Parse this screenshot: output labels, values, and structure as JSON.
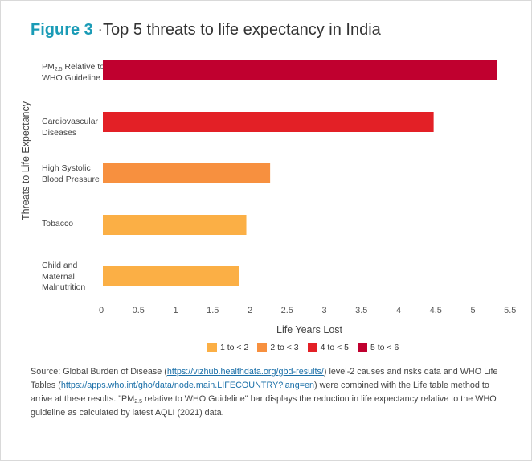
{
  "title": {
    "figure_label": "Figure 3",
    "separator": "·",
    "text": "Top 5 threats to life expectancy in India"
  },
  "chart_data": {
    "type": "bar",
    "orientation": "horizontal",
    "categories": [
      "PM2.5 Relative to WHO Guideline",
      "Cardiovascular Diseases",
      "High Systolic Blood Pressure",
      "Tobacco",
      "Child and Maternal Malnutrition"
    ],
    "values": [
      5.3,
      4.45,
      2.25,
      1.93,
      1.83
    ],
    "bar_colors": [
      "#c0002f",
      "#e32026",
      "#f7903f",
      "#fbaf45",
      "#fbaf45"
    ],
    "xlabel": "Life Years Lost",
    "ylabel": "Threats to Life Expectancy",
    "xlim": [
      0,
      5.5
    ],
    "x_ticks": [
      "0",
      "0.5",
      "1",
      "1.5",
      "2",
      "2.5",
      "3",
      "3.5",
      "4",
      "4.5",
      "5",
      "5.5"
    ],
    "grid": false,
    "legend_placement": "bottom",
    "legend": [
      {
        "label": "1 to < 2",
        "color": "#fbaf45"
      },
      {
        "label": "2 to < 3",
        "color": "#f7903f"
      },
      {
        "label": "4 to < 5",
        "color": "#e32026"
      },
      {
        "label": "5 to < 6",
        "color": "#c0002f"
      }
    ]
  },
  "category_labels": {
    "pm25_prefix": "PM",
    "pm25_sub": "2.5",
    "pm25_suffix": " Relative to WHO Guideline",
    "cardio": "Cardiovascular Diseases",
    "bp": "High Systolic Blood Pressure",
    "tobacco": "Tobacco",
    "malnutrition": "Child and Maternal Malnutrition"
  },
  "source": {
    "p1": "Source: Global Burden of Disease (",
    "link1": "https://vizhub.healthdata.org/gbd-results/",
    "p2": ") level-2 causes and risks data and WHO Life Tables (",
    "link2": "https://apps.who.int/gho/data/node.main.LIFECOUNTRY?lang=en",
    "p3": ") were combined with the Life table method to arrive at these results. \"PM",
    "sub": "2.5",
    "p4": " relative to WHO Guideline\" bar displays the reduction in life expectancy relative to the WHO guideline as calculated by latest AQLI (2021) data."
  }
}
